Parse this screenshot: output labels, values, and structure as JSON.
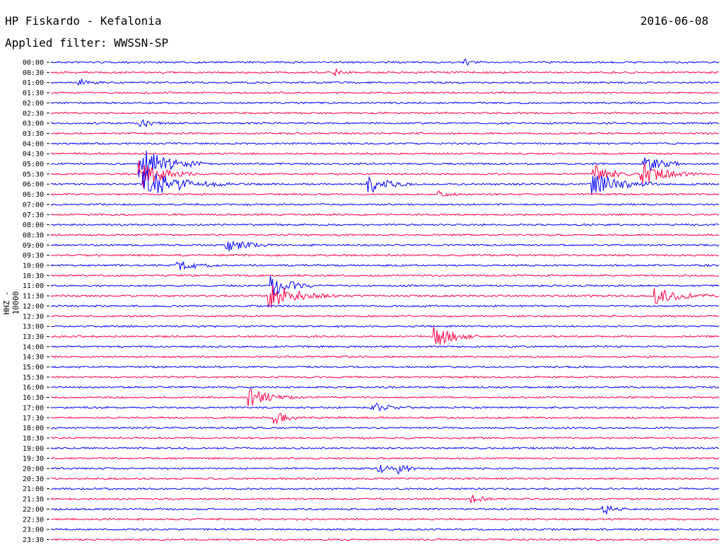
{
  "header": {
    "station": "HP Fiskardo - Kefalonia",
    "date": "2016-06-08",
    "filter": "Applied filter: WWSSN-SP"
  },
  "colors": {
    "trace_a": "#0000ff",
    "trace_b": "#ff0044",
    "text": "#000000"
  },
  "chart_data": {
    "type": "line",
    "title": "HP Fiskardo - Kefalonia",
    "ylabel": "HHZ - 10000",
    "rows": [
      "00:00",
      "00:30",
      "01:00",
      "01:30",
      "02:00",
      "02:30",
      "03:00",
      "03:30",
      "04:00",
      "04:30",
      "05:00",
      "05:30",
      "06:00",
      "06:30",
      "07:00",
      "07:30",
      "08:00",
      "08:30",
      "09:00",
      "09:30",
      "10:00",
      "10:30",
      "11:00",
      "11:30",
      "12:00",
      "12:30",
      "13:00",
      "13:30",
      "14:00",
      "14:30",
      "15:00",
      "15:30",
      "16:00",
      "16:30",
      "17:00",
      "17:30",
      "18:00",
      "18:30",
      "19:00",
      "19:30",
      "20:00",
      "20:30",
      "21:00",
      "21:30",
      "22:00",
      "22:30",
      "23:00",
      "23:30"
    ],
    "grid": false,
    "events": [
      {
        "row": 10,
        "minute": 4.0,
        "amp": 22,
        "dur": 3
      },
      {
        "row": 11,
        "minute": 4.0,
        "amp": 18,
        "dur": 2.5
      },
      {
        "row": 12,
        "minute": 4.1,
        "amp": 20,
        "dur": 4
      },
      {
        "row": 12,
        "minute": 14.2,
        "amp": 14,
        "dur": 2
      },
      {
        "row": 12,
        "minute": 24.3,
        "amp": 16,
        "dur": 3
      },
      {
        "row": 11,
        "minute": 24.3,
        "amp": 12,
        "dur": 2
      },
      {
        "row": 11,
        "minute": 26.5,
        "amp": 14,
        "dur": 2.5
      },
      {
        "row": 10,
        "minute": 26.6,
        "amp": 10,
        "dur": 2
      },
      {
        "row": 23,
        "minute": 9.8,
        "amp": 16,
        "dur": 3
      },
      {
        "row": 22,
        "minute": 9.9,
        "amp": 14,
        "dur": 2
      },
      {
        "row": 23,
        "minute": 27.1,
        "amp": 10,
        "dur": 3
      },
      {
        "row": 27,
        "minute": 17.2,
        "amp": 14,
        "dur": 2
      },
      {
        "row": 33,
        "minute": 8.9,
        "amp": 12,
        "dur": 2
      },
      {
        "row": 20,
        "minute": 5.6,
        "amp": 8,
        "dur": 2
      },
      {
        "row": 18,
        "minute": 7.9,
        "amp": 8,
        "dur": 2
      },
      {
        "row": 34,
        "minute": 14.4,
        "amp": 6,
        "dur": 2
      },
      {
        "row": 35,
        "minute": 10.0,
        "amp": 7,
        "dur": 1.5
      },
      {
        "row": 40,
        "minute": 14.7,
        "amp": 6,
        "dur": 1
      },
      {
        "row": 40,
        "minute": 15.6,
        "amp": 6,
        "dur": 1
      },
      {
        "row": 44,
        "minute": 24.8,
        "amp": 6,
        "dur": 1
      },
      {
        "row": 43,
        "minute": 18.9,
        "amp": 5,
        "dur": 1
      },
      {
        "row": 13,
        "minute": 17.4,
        "amp": 4,
        "dur": 1
      },
      {
        "row": 6,
        "minute": 4.0,
        "amp": 6,
        "dur": 1
      },
      {
        "row": 2,
        "minute": 1.2,
        "amp": 5,
        "dur": 1
      },
      {
        "row": 1,
        "minute": 12.7,
        "amp": 4,
        "dur": 0.8
      },
      {
        "row": 0,
        "minute": 18.5,
        "amp": 4,
        "dur": 0.8
      }
    ]
  }
}
